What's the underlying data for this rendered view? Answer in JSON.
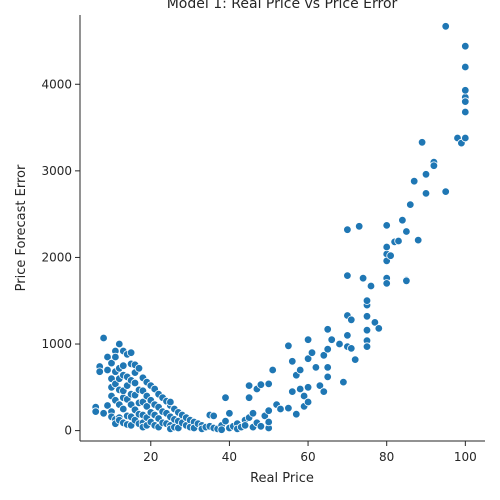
{
  "chart_data": {
    "type": "scatter",
    "title": "Model 1: Real Price vs Price Error",
    "xlabel": "Real Price",
    "ylabel": "Price Forecast Error",
    "xlim": [
      2,
      105
    ],
    "ylim": [
      -120,
      4800
    ],
    "xticks": [
      20,
      40,
      60,
      80,
      100
    ],
    "yticks": [
      0,
      1000,
      2000,
      3000,
      4000
    ],
    "grid": false,
    "legend": "none",
    "marker_color": "#1f77b4",
    "marker_edge_color": "#ffffff",
    "series": [
      {
        "x": [
          6,
          6,
          7,
          7,
          8,
          8,
          9,
          9,
          9,
          10,
          10,
          10,
          10,
          10,
          10,
          11,
          11,
          11,
          11,
          11,
          11,
          11,
          12,
          12,
          12,
          12,
          12,
          12,
          12,
          13,
          13,
          13,
          13,
          13,
          13,
          13,
          14,
          14,
          14,
          14,
          14,
          14,
          15,
          15,
          15,
          15,
          15,
          15,
          15,
          16,
          16,
          16,
          16,
          16,
          16,
          17,
          17,
          17,
          17,
          17,
          18,
          18,
          18,
          18,
          18,
          18,
          19,
          19,
          19,
          19,
          19,
          20,
          20,
          20,
          20,
          21,
          21,
          21,
          21,
          22,
          22,
          22,
          22,
          23,
          23,
          23,
          24,
          24,
          24,
          25,
          25,
          25,
          25,
          25,
          26,
          26,
          26,
          27,
          27,
          27,
          28,
          28,
          29,
          29,
          30,
          30,
          31,
          31,
          32,
          33,
          33,
          34,
          35,
          35,
          36,
          36,
          37,
          38,
          38,
          39,
          39,
          40,
          40,
          41,
          42,
          42,
          43,
          44,
          44,
          45,
          45,
          45,
          46,
          46,
          47,
          47,
          48,
          48,
          49,
          50,
          50,
          50,
          50,
          51,
          52,
          53,
          55,
          55,
          56,
          56,
          57,
          57,
          58,
          58,
          59,
          59,
          60,
          60,
          60,
          60,
          61,
          62,
          63,
          64,
          64,
          65,
          65,
          65,
          65,
          66,
          68,
          69,
          70,
          70,
          70,
          70,
          70,
          71,
          71,
          72,
          73,
          74,
          75,
          75,
          75,
          75,
          75,
          75,
          76,
          77,
          78,
          80,
          80,
          80,
          80,
          80,
          80,
          81,
          82,
          83,
          84,
          85,
          85,
          85,
          86,
          87,
          88,
          89,
          90,
          90,
          92,
          92,
          95,
          95,
          98,
          99,
          100,
          100,
          100,
          100,
          100,
          100,
          100
        ],
        "y": [
          270,
          220,
          740,
          680,
          1070,
          200,
          700,
          290,
          850,
          500,
          400,
          220,
          160,
          780,
          600,
          540,
          920,
          350,
          130,
          80,
          680,
          850,
          1000,
          720,
          470,
          300,
          150,
          120,
          600,
          920,
          640,
          380,
          250,
          90,
          460,
          750,
          880,
          520,
          360,
          170,
          70,
          620,
          900,
          770,
          580,
          420,
          300,
          160,
          60,
          760,
          550,
          410,
          240,
          120,
          670,
          720,
          470,
          320,
          190,
          80,
          610,
          460,
          330,
          180,
          90,
          40,
          560,
          400,
          280,
          150,
          60,
          520,
          350,
          210,
          100,
          480,
          300,
          180,
          60,
          420,
          270,
          140,
          40,
          380,
          220,
          90,
          340,
          200,
          80,
          290,
          160,
          60,
          330,
          20,
          250,
          130,
          40,
          210,
          110,
          30,
          180,
          90,
          150,
          60,
          120,
          40,
          100,
          30,
          80,
          60,
          20,
          40,
          180,
          50,
          170,
          30,
          20,
          60,
          10,
          380,
          110,
          200,
          30,
          50,
          80,
          20,
          40,
          120,
          60,
          520,
          380,
          150,
          40,
          200,
          480,
          90,
          530,
          50,
          170,
          30,
          100,
          230,
          540,
          700,
          300,
          250,
          260,
          980,
          800,
          450,
          190,
          640,
          480,
          700,
          280,
          400,
          830,
          500,
          1050,
          330,
          900,
          730,
          520,
          450,
          870,
          620,
          1170,
          940,
          730,
          1050,
          1000,
          560,
          1790,
          1330,
          2320,
          1100,
          970,
          1280,
          950,
          820,
          2360,
          1760,
          1450,
          1500,
          1320,
          1160,
          1040,
          970,
          1670,
          1250,
          1180,
          2040,
          1960,
          1760,
          1700,
          2370,
          2120,
          2020,
          2180,
          2190,
          2430,
          2300,
          1740,
          1730,
          2610,
          2880,
          2200,
          3330,
          2960,
          2740,
          3100,
          3060,
          4670,
          2760,
          3380,
          3320,
          3380,
          3680,
          3850,
          3930,
          4200,
          4440,
          3800
        ]
      }
    ]
  }
}
